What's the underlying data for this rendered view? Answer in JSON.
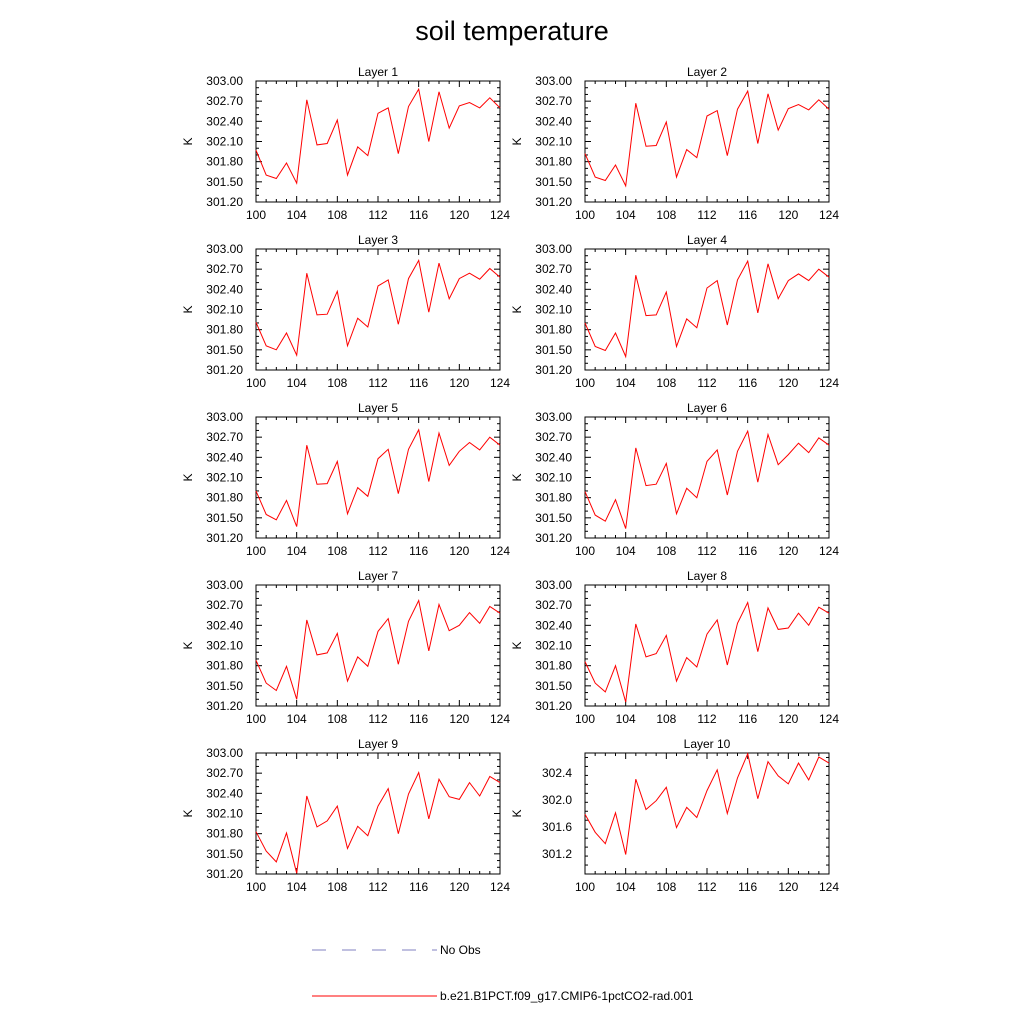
{
  "figure": {
    "title": "soil temperature",
    "ylabel": "K"
  },
  "legend": {
    "entries": [
      {
        "label": "No Obs",
        "color": "#8080c0",
        "style": "dashed"
      },
      {
        "label": "b.e21.B1PCT.f09_g17.CMIP6-1pctCO2-rad.001",
        "color": "#ff0000",
        "style": "solid"
      }
    ]
  },
  "chart_data": [
    {
      "type": "line",
      "title": "Layer 1",
      "ylabel": "K",
      "xlim": [
        100,
        124
      ],
      "ylim": [
        301.2,
        303.0
      ],
      "xticks": [
        "100",
        "104",
        "108",
        "112",
        "116",
        "120",
        "124"
      ],
      "yticks": [
        "301.20",
        "301.50",
        "301.80",
        "302.10",
        "302.40",
        "302.70",
        "303.00"
      ],
      "series": [
        {
          "color": "#ff0000",
          "x": [
            100,
            101,
            102,
            103,
            104,
            105,
            106,
            107,
            108,
            109,
            110,
            111,
            112,
            113,
            114,
            115,
            116,
            117,
            118,
            119,
            120,
            121,
            122,
            123,
            124
          ],
          "values": [
            301.97,
            301.6,
            301.55,
            301.78,
            301.48,
            302.72,
            302.05,
            302.07,
            302.42,
            301.6,
            302.02,
            301.89,
            302.52,
            302.6,
            301.92,
            302.62,
            302.88,
            302.1,
            302.84,
            302.3,
            302.63,
            302.68,
            302.6,
            302.75,
            302.6
          ]
        }
      ]
    },
    {
      "type": "line",
      "title": "Layer 2",
      "ylabel": "K",
      "xlim": [
        100,
        124
      ],
      "ylim": [
        301.2,
        303.0
      ],
      "xticks": [
        "100",
        "104",
        "108",
        "112",
        "116",
        "120",
        "124"
      ],
      "yticks": [
        "301.20",
        "301.50",
        "301.80",
        "302.10",
        "302.40",
        "302.70",
        "303.00"
      ],
      "series": [
        {
          "color": "#ff0000",
          "x": [
            100,
            101,
            102,
            103,
            104,
            105,
            106,
            107,
            108,
            109,
            110,
            111,
            112,
            113,
            114,
            115,
            116,
            117,
            118,
            119,
            120,
            121,
            122,
            123,
            124
          ],
          "values": [
            301.92,
            301.57,
            301.52,
            301.75,
            301.44,
            302.67,
            302.03,
            302.04,
            302.39,
            301.57,
            301.98,
            301.86,
            302.48,
            302.56,
            301.89,
            302.58,
            302.85,
            302.07,
            302.81,
            302.27,
            302.59,
            302.65,
            302.57,
            302.72,
            302.58
          ]
        }
      ]
    },
    {
      "type": "line",
      "title": "Layer 3",
      "ylabel": "K",
      "xlim": [
        100,
        124
      ],
      "ylim": [
        301.2,
        303.0
      ],
      "xticks": [
        "100",
        "104",
        "108",
        "112",
        "116",
        "120",
        "124"
      ],
      "yticks": [
        "301.20",
        "301.50",
        "301.80",
        "302.10",
        "302.40",
        "302.70",
        "303.00"
      ],
      "series": [
        {
          "color": "#ff0000",
          "x": [
            100,
            101,
            102,
            103,
            104,
            105,
            106,
            107,
            108,
            109,
            110,
            111,
            112,
            113,
            114,
            115,
            116,
            117,
            118,
            119,
            120,
            121,
            122,
            123,
            124
          ],
          "values": [
            301.91,
            301.56,
            301.5,
            301.75,
            301.42,
            302.64,
            302.02,
            302.03,
            302.37,
            301.56,
            301.97,
            301.84,
            302.45,
            302.54,
            301.88,
            302.56,
            302.83,
            302.06,
            302.79,
            302.26,
            302.56,
            302.64,
            302.55,
            302.71,
            302.58
          ]
        }
      ]
    },
    {
      "type": "line",
      "title": "Layer 4",
      "ylabel": "K",
      "xlim": [
        100,
        124
      ],
      "ylim": [
        301.2,
        303.0
      ],
      "xticks": [
        "100",
        "104",
        "108",
        "112",
        "116",
        "120",
        "124"
      ],
      "yticks": [
        "301.20",
        "301.50",
        "301.80",
        "302.10",
        "302.40",
        "302.70",
        "303.00"
      ],
      "series": [
        {
          "color": "#ff0000",
          "x": [
            100,
            101,
            102,
            103,
            104,
            105,
            106,
            107,
            108,
            109,
            110,
            111,
            112,
            113,
            114,
            115,
            116,
            117,
            118,
            119,
            120,
            121,
            122,
            123,
            124
          ],
          "values": [
            301.9,
            301.55,
            301.49,
            301.75,
            301.4,
            302.61,
            302.01,
            302.02,
            302.36,
            301.55,
            301.96,
            301.83,
            302.42,
            302.53,
            301.87,
            302.54,
            302.82,
            302.05,
            302.78,
            302.26,
            302.53,
            302.63,
            302.53,
            302.7,
            302.58
          ]
        }
      ]
    },
    {
      "type": "line",
      "title": "Layer 5",
      "ylabel": "K",
      "xlim": [
        100,
        124
      ],
      "ylim": [
        301.2,
        303.0
      ],
      "xticks": [
        "100",
        "104",
        "108",
        "112",
        "116",
        "120",
        "124"
      ],
      "yticks": [
        "301.20",
        "301.50",
        "301.80",
        "302.10",
        "302.40",
        "302.70",
        "303.00"
      ],
      "series": [
        {
          "color": "#ff0000",
          "x": [
            100,
            101,
            102,
            103,
            104,
            105,
            106,
            107,
            108,
            109,
            110,
            111,
            112,
            113,
            114,
            115,
            116,
            117,
            118,
            119,
            120,
            121,
            122,
            123,
            124
          ],
          "values": [
            301.9,
            301.55,
            301.47,
            301.76,
            301.37,
            302.58,
            302.0,
            302.01,
            302.34,
            301.56,
            301.95,
            301.82,
            302.38,
            302.52,
            301.86,
            302.52,
            302.81,
            302.04,
            302.76,
            302.28,
            302.49,
            302.62,
            302.51,
            302.7,
            302.58
          ]
        }
      ]
    },
    {
      "type": "line",
      "title": "Layer 6",
      "ylabel": "K",
      "xlim": [
        100,
        124
      ],
      "ylim": [
        301.2,
        303.0
      ],
      "xticks": [
        "100",
        "104",
        "108",
        "112",
        "116",
        "120",
        "124"
      ],
      "yticks": [
        "301.20",
        "301.50",
        "301.80",
        "302.10",
        "302.40",
        "302.70",
        "303.00"
      ],
      "series": [
        {
          "color": "#ff0000",
          "x": [
            100,
            101,
            102,
            103,
            104,
            105,
            106,
            107,
            108,
            109,
            110,
            111,
            112,
            113,
            114,
            115,
            116,
            117,
            118,
            119,
            120,
            121,
            122,
            123,
            124
          ],
          "values": [
            301.89,
            301.54,
            301.45,
            301.77,
            301.34,
            302.54,
            301.98,
            302.0,
            302.31,
            301.56,
            301.94,
            301.8,
            302.34,
            302.51,
            301.84,
            302.49,
            302.79,
            302.03,
            302.74,
            302.29,
            302.44,
            302.61,
            302.47,
            302.69,
            302.58
          ]
        }
      ]
    },
    {
      "type": "line",
      "title": "Layer 7",
      "ylabel": "K",
      "xlim": [
        100,
        124
      ],
      "ylim": [
        301.2,
        303.0
      ],
      "xticks": [
        "100",
        "104",
        "108",
        "112",
        "116",
        "120",
        "124"
      ],
      "yticks": [
        "301.20",
        "301.50",
        "301.80",
        "302.10",
        "302.40",
        "302.70",
        "303.00"
      ],
      "series": [
        {
          "color": "#ff0000",
          "x": [
            100,
            101,
            102,
            103,
            104,
            105,
            106,
            107,
            108,
            109,
            110,
            111,
            112,
            113,
            114,
            115,
            116,
            117,
            118,
            119,
            120,
            121,
            122,
            123,
            124
          ],
          "values": [
            301.88,
            301.54,
            301.43,
            301.79,
            301.3,
            302.48,
            301.96,
            301.99,
            302.28,
            301.57,
            301.93,
            301.79,
            302.31,
            302.5,
            301.82,
            302.46,
            302.77,
            302.02,
            302.71,
            302.32,
            302.4,
            302.59,
            302.43,
            302.68,
            302.58
          ]
        }
      ]
    },
    {
      "type": "line",
      "title": "Layer 8",
      "ylabel": "K",
      "xlim": [
        100,
        124
      ],
      "ylim": [
        301.2,
        303.0
      ],
      "xticks": [
        "100",
        "104",
        "108",
        "112",
        "116",
        "120",
        "124"
      ],
      "yticks": [
        "301.20",
        "301.50",
        "301.80",
        "302.10",
        "302.40",
        "302.70",
        "303.00"
      ],
      "series": [
        {
          "color": "#ff0000",
          "x": [
            100,
            101,
            102,
            103,
            104,
            105,
            106,
            107,
            108,
            109,
            110,
            111,
            112,
            113,
            114,
            115,
            116,
            117,
            118,
            119,
            120,
            121,
            122,
            123,
            124
          ],
          "values": [
            301.86,
            301.54,
            301.41,
            301.8,
            301.26,
            302.42,
            301.93,
            301.98,
            302.25,
            301.57,
            301.92,
            301.78,
            302.27,
            302.48,
            301.81,
            302.43,
            302.74,
            302.01,
            302.66,
            302.34,
            302.36,
            302.58,
            302.4,
            302.67,
            302.58
          ]
        }
      ]
    },
    {
      "type": "line",
      "title": "Layer 9",
      "ylabel": "K",
      "xlim": [
        100,
        124
      ],
      "ylim": [
        301.2,
        303.0
      ],
      "xticks": [
        "100",
        "104",
        "108",
        "112",
        "116",
        "120",
        "124"
      ],
      "yticks": [
        "301.20",
        "301.50",
        "301.80",
        "302.10",
        "302.40",
        "302.70",
        "303.00"
      ],
      "series": [
        {
          "color": "#ff0000",
          "x": [
            100,
            101,
            102,
            103,
            104,
            105,
            106,
            107,
            108,
            109,
            110,
            111,
            112,
            113,
            114,
            115,
            116,
            117,
            118,
            119,
            120,
            121,
            122,
            123,
            124
          ],
          "values": [
            301.83,
            301.54,
            301.38,
            301.81,
            301.21,
            302.36,
            301.9,
            301.99,
            302.21,
            301.58,
            301.91,
            301.77,
            302.21,
            302.47,
            301.8,
            302.39,
            302.71,
            302.02,
            302.61,
            302.35,
            302.31,
            302.56,
            302.36,
            302.65,
            302.56
          ]
        }
      ]
    },
    {
      "type": "line",
      "title": "Layer 10",
      "ylabel": "K",
      "xlim": [
        100,
        124
      ],
      "ylim": [
        300.9,
        302.7
      ],
      "xticks": [
        "100",
        "104",
        "108",
        "112",
        "116",
        "120",
        "124"
      ],
      "yticks": [
        "301.2",
        "301.6",
        "302.0",
        "302.4"
      ],
      "series": [
        {
          "color": "#ff0000",
          "x": [
            100,
            101,
            102,
            103,
            104,
            105,
            106,
            107,
            108,
            109,
            110,
            111,
            112,
            113,
            114,
            115,
            116,
            117,
            118,
            119,
            120,
            121,
            122,
            123,
            124
          ],
          "values": [
            301.79,
            301.52,
            301.35,
            301.81,
            301.19,
            302.31,
            301.86,
            301.99,
            302.19,
            301.59,
            301.89,
            301.74,
            302.14,
            302.45,
            301.8,
            302.33,
            302.69,
            302.02,
            302.57,
            302.36,
            302.24,
            302.55,
            302.3,
            302.64,
            302.55
          ]
        }
      ]
    }
  ]
}
